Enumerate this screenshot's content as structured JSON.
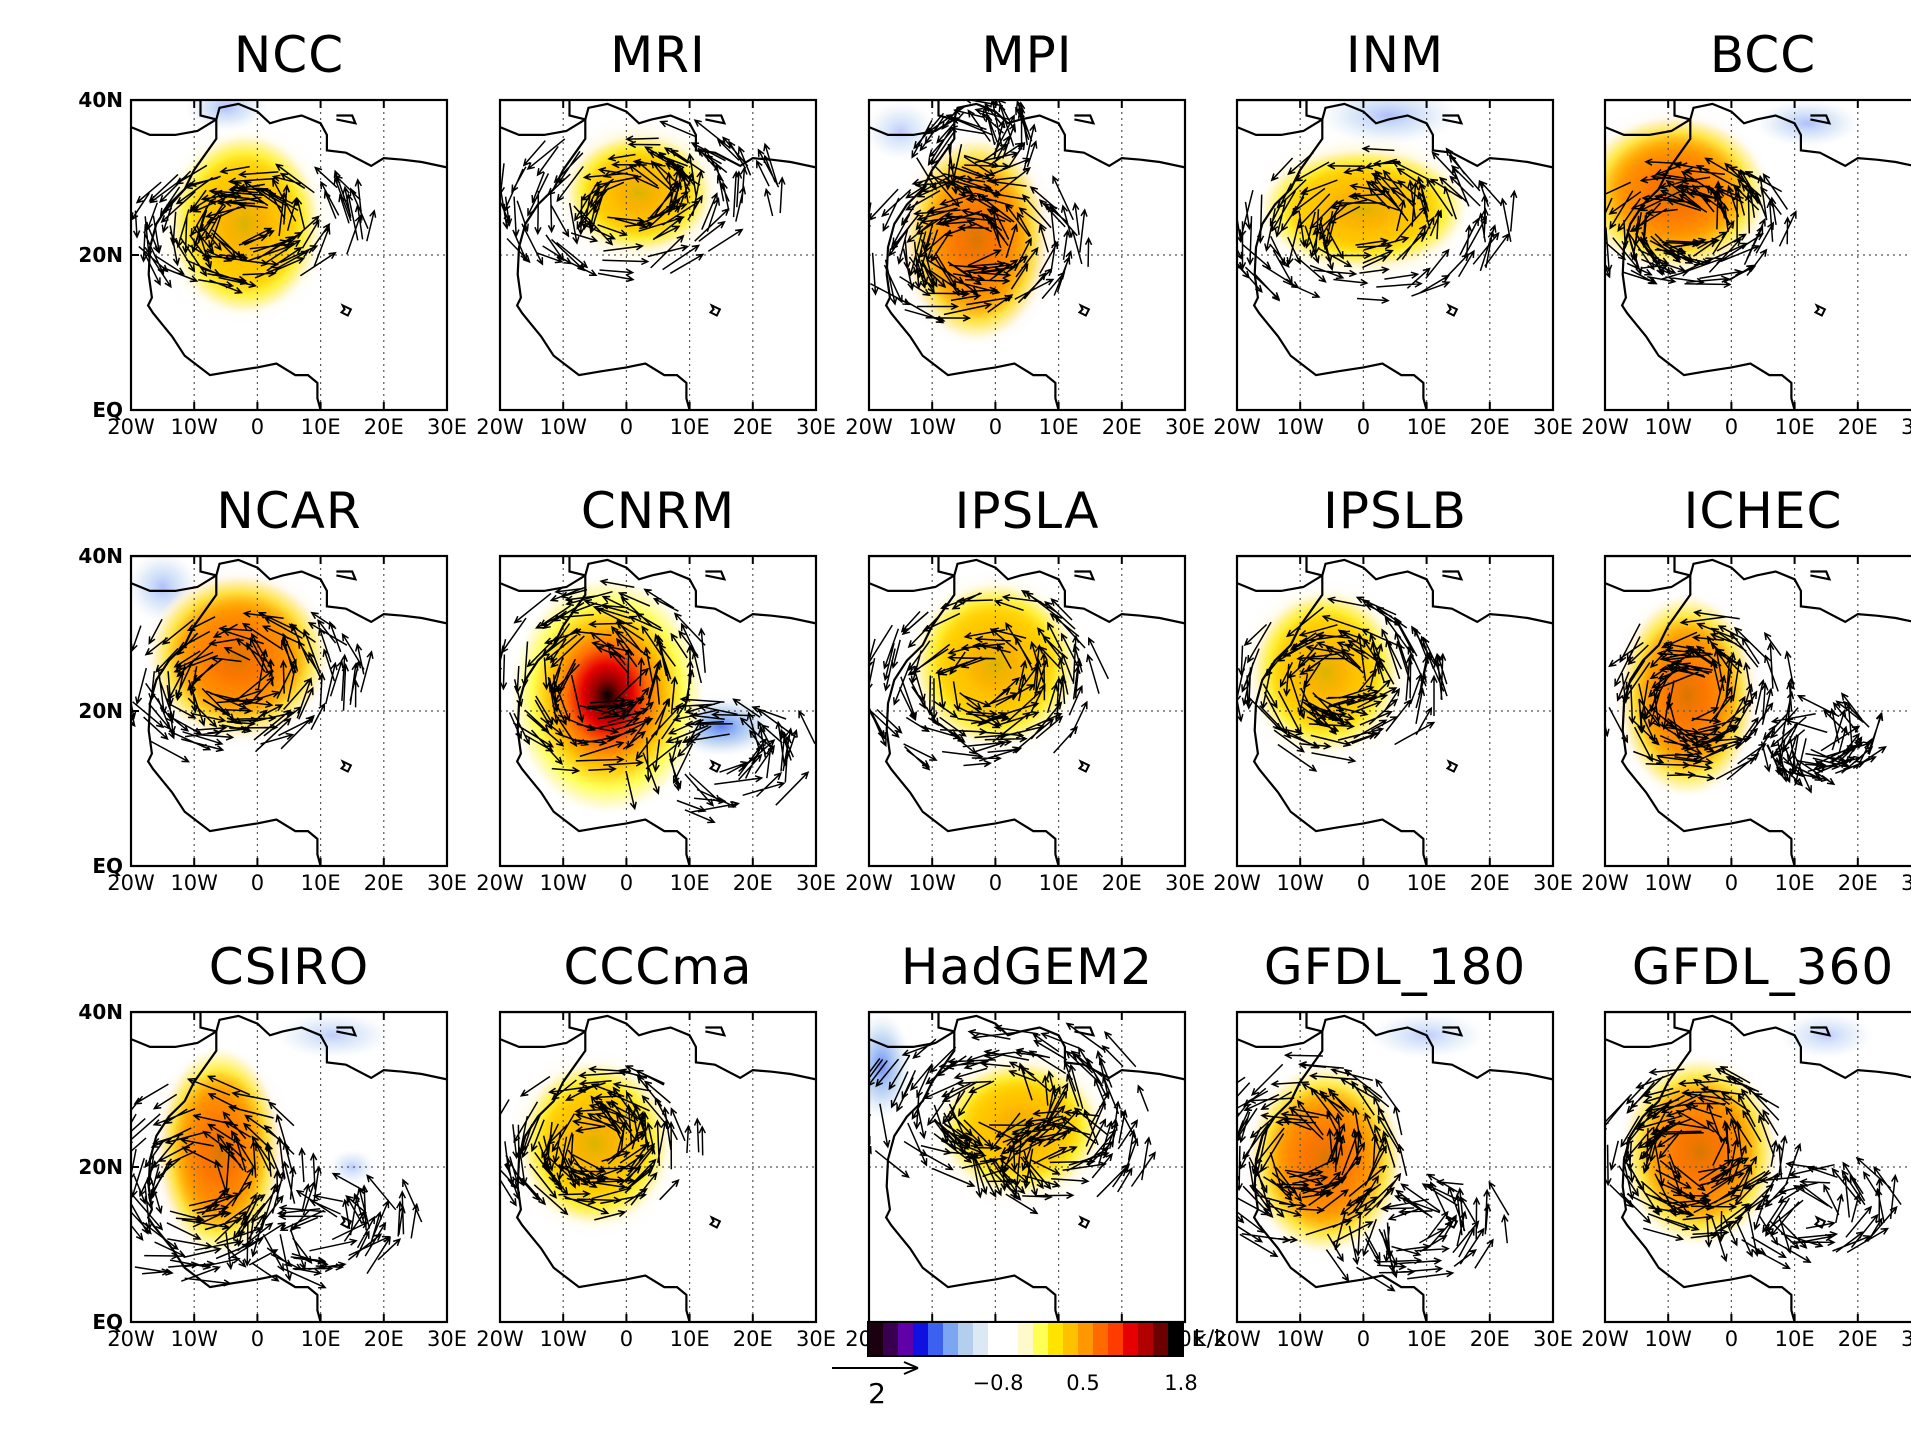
{
  "figure": {
    "panels": [
      {
        "title": "NCC",
        "hot": [
          [
            -2,
            24,
            1.0,
            1.2,
            0.6
          ]
        ],
        "cold": [
          [
            -5,
            39,
            0.7,
            0.4,
            0.25
          ]
        ],
        "vort": [
          [
            -2,
            24,
            2.0,
            1.0
          ]
        ],
        "arrowDensity": "dense"
      },
      {
        "title": "MRI",
        "hot": [
          [
            2,
            28,
            1.0,
            0.8,
            0.5
          ]
        ],
        "cold": [],
        "vort": [
          [
            1,
            27,
            2.4,
            1.2
          ]
        ],
        "arrowDensity": "dense"
      },
      {
        "title": "MPI",
        "hot": [
          [
            -3,
            22,
            0.9,
            1.3,
            0.75
          ]
        ],
        "cold": [
          [
            -15,
            36,
            0.6,
            0.5,
            0.2
          ]
        ],
        "vort": [
          [
            -4,
            21,
            2.0,
            1.2
          ],
          [
            -3,
            34,
            1.0,
            0.8
          ]
        ],
        "arrowDensity": "dense"
      },
      {
        "title": "INM",
        "hot": [
          [
            0,
            26,
            1.4,
            0.8,
            0.55
          ]
        ],
        "cold": [
          [
            4,
            38,
            1.2,
            0.5,
            0.25
          ]
        ],
        "vort": [
          [
            0,
            24,
            2.4,
            1.2
          ]
        ],
        "arrowDensity": "dense"
      },
      {
        "title": "BCC",
        "hot": [
          [
            -9,
            28,
            1.1,
            0.9,
            1.0
          ]
        ],
        "cold": [
          [
            12,
            37,
            0.9,
            0.4,
            0.25
          ]
        ],
        "vort": [
          [
            -8,
            24,
            2.0,
            1.0
          ]
        ],
        "arrowDensity": "dense"
      },
      {
        "title": "NCAR",
        "hot": [
          [
            -3,
            27,
            1.1,
            1.0,
            0.85
          ]
        ],
        "cold": [
          [
            -15,
            36,
            0.6,
            0.6,
            0.25
          ]
        ],
        "vort": [
          [
            -4,
            24,
            2.2,
            1.2
          ]
        ],
        "arrowDensity": "dense"
      },
      {
        "title": "CNRM",
        "hot": [
          [
            -3,
            22,
            0.9,
            1.1,
            1.8
          ]
        ],
        "cold": [
          [
            15,
            18,
            0.9,
            0.5,
            0.5
          ]
        ],
        "vort": [
          [
            -4,
            24,
            1.8,
            1.6
          ],
          [
            15,
            14,
            1.6,
            1.0
          ]
        ],
        "arrowDensity": "dense"
      },
      {
        "title": "IPSLA",
        "hot": [
          [
            0,
            26,
            1.1,
            1.1,
            0.55
          ]
        ],
        "cold": [],
        "vort": [
          [
            -2,
            24,
            2.0,
            1.4
          ]
        ],
        "arrowDensity": "dense"
      },
      {
        "title": "IPSLB",
        "hot": [
          [
            -6,
            25,
            1.0,
            1.1,
            0.5
          ]
        ],
        "cold": [],
        "vort": [
          [
            -4,
            24,
            1.8,
            1.2
          ]
        ],
        "arrowDensity": "dense"
      },
      {
        "title": "ICHEC",
        "hot": [
          [
            -7,
            22,
            0.8,
            1.2,
            0.95
          ]
        ],
        "cold": [],
        "vort": [
          [
            -6,
            22,
            1.6,
            1.4
          ],
          [
            14,
            16,
            1.0,
            0.6
          ]
        ],
        "arrowDensity": "dense"
      },
      {
        "title": "CSIRO",
        "hot": [
          [
            -6,
            22,
            0.7,
            1.2,
            1.05
          ]
        ],
        "cold": [
          [
            12,
            37,
            1.0,
            0.4,
            0.2
          ],
          [
            15,
            20,
            0.4,
            0.3,
            0.2
          ]
        ],
        "vort": [
          [
            -10,
            18,
            2.0,
            1.6
          ],
          [
            10,
            12,
            1.6,
            0.8
          ]
        ],
        "arrowDensity": "dense"
      },
      {
        "title": "CCCma",
        "hot": [
          [
            -5,
            23,
            1.0,
            1.1,
            0.55
          ]
        ],
        "cold": [],
        "vort": [
          [
            -5,
            23,
            1.8,
            1.2
          ]
        ],
        "arrowDensity": "dense"
      },
      {
        "title": "HadGEM2",
        "hot": [
          [
            4,
            25,
            1.1,
            0.9,
            0.5
          ]
        ],
        "cold": [
          [
            -18,
            33,
            0.5,
            0.9,
            0.45
          ]
        ],
        "vort": [
          [
            0,
            28,
            2.6,
            1.2
          ],
          [
            10,
            22,
            1.6,
            0.8
          ]
        ],
        "arrowDensity": "dense"
      },
      {
        "title": "GFDL_180",
        "hot": [
          [
            -6,
            21,
            0.9,
            1.1,
            1.0
          ]
        ],
        "cold": [
          [
            10,
            37,
            1.0,
            0.4,
            0.2
          ]
        ],
        "vort": [
          [
            -10,
            22,
            1.8,
            1.6
          ],
          [
            8,
            12,
            1.6,
            0.8
          ]
        ],
        "arrowDensity": "dense"
      },
      {
        "title": "GFDL_360",
        "hot": [
          [
            -5,
            22,
            0.9,
            1.1,
            1.0
          ]
        ],
        "cold": [
          [
            15,
            37,
            0.8,
            0.4,
            0.2
          ]
        ],
        "vort": [
          [
            -6,
            22,
            1.6,
            1.4
          ],
          [
            12,
            14,
            1.6,
            0.8
          ]
        ],
        "arrowDensity": "dense"
      }
    ],
    "axes": {
      "lon_range": [
        -20,
        30
      ],
      "lat_range": [
        0,
        40
      ],
      "lon_ticks": [
        "20W",
        "10W",
        "0",
        "10E",
        "20E",
        "30E"
      ],
      "lat_ticks": [
        "EQ",
        "20N",
        "40N"
      ]
    },
    "colorbar": {
      "unit": "k/k",
      "tick_labels": [
        "−0.8",
        "0.5",
        "1.8"
      ],
      "colors": [
        "#1c0010",
        "#3a0050",
        "#6000a8",
        "#1010e0",
        "#3c60f0",
        "#7ba6f2",
        "#b4cfee",
        "#dce9f4",
        "#ffffff",
        "#ffffff",
        "#fffacc",
        "#ffff55",
        "#ffe400",
        "#ffc000",
        "#ff9800",
        "#ff6a00",
        "#ff3c00",
        "#e60000",
        "#b00000",
        "#6a0000",
        "#000000"
      ]
    },
    "reference_vector": {
      "label": "2"
    }
  }
}
